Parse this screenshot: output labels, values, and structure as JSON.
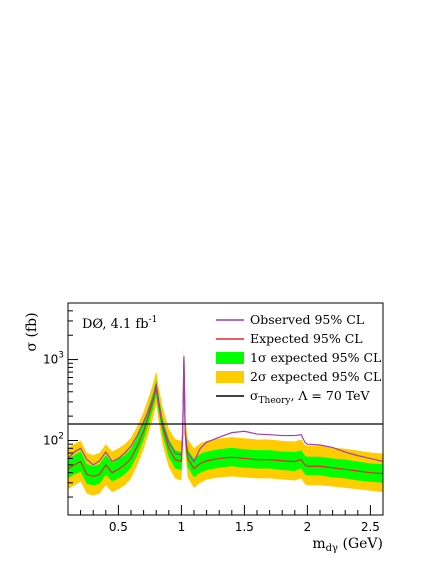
{
  "chart_data": {
    "type": "line",
    "title": "",
    "experiment_label": "DØ, 4.1 fb",
    "experiment_label_sup": "-1",
    "xlabel": "m",
    "xlabel_sub": "dγ",
    "xlabel_unit": " (GeV)",
    "ylabel": "σ (fb)",
    "xlim": [
      0.1,
      2.6
    ],
    "ylim": [
      12,
      5000
    ],
    "yscale": "log",
    "grid": false,
    "legend_position": "top-right",
    "x_ticks": [
      {
        "value": 0.5,
        "label": "0.5"
      },
      {
        "value": 1.0,
        "label": "1"
      },
      {
        "value": 1.5,
        "label": "1.5"
      },
      {
        "value": 2.0,
        "label": "2"
      },
      {
        "value": 2.5,
        "label": "2.5"
      }
    ],
    "y_ticks": [
      {
        "value": 100,
        "base": "10",
        "exp": "2"
      },
      {
        "value": 1000,
        "base": "10",
        "exp": "3"
      }
    ],
    "x": [
      0.1,
      0.15,
      0.2,
      0.25,
      0.3,
      0.35,
      0.4,
      0.45,
      0.5,
      0.55,
      0.6,
      0.65,
      0.7,
      0.75,
      0.78,
      0.8,
      0.82,
      0.85,
      0.9,
      0.95,
      1.0,
      1.01,
      1.02,
      1.03,
      1.05,
      1.1,
      1.15,
      1.2,
      1.3,
      1.4,
      1.5,
      1.6,
      1.7,
      1.8,
      1.9,
      1.95,
      1.98,
      2.0,
      2.1,
      2.2,
      2.3,
      2.4,
      2.5,
      2.6
    ],
    "series": [
      {
        "name": "Observed 95% CL",
        "color": "#9b3fb0",
        "values": [
          60,
          72,
          80,
          58,
          50,
          56,
          72,
          55,
          60,
          70,
          85,
          115,
          170,
          260,
          350,
          500,
          300,
          160,
          95,
          70,
          66,
          120,
          1100,
          130,
          70,
          55,
          80,
          95,
          110,
          125,
          130,
          120,
          118,
          115,
          115,
          118,
          95,
          90,
          88,
          82,
          72,
          65,
          60,
          55
        ]
      },
      {
        "name": "Expected 95% CL",
        "color": "#e8262a",
        "values": [
          45,
          50,
          55,
          38,
          36,
          38,
          50,
          40,
          44,
          50,
          60,
          85,
          130,
          230,
          330,
          450,
          280,
          150,
          80,
          58,
          55,
          110,
          1050,
          120,
          60,
          45,
          52,
          56,
          60,
          62,
          60,
          58,
          58,
          56,
          55,
          58,
          50,
          48,
          48,
          46,
          44,
          42,
          40,
          39
        ]
      }
    ],
    "band_1sigma": {
      "name": "1σ expected 95% CL",
      "color": "#00ff00",
      "lower": [
        34,
        38,
        41,
        29,
        28,
        29,
        38,
        31,
        34,
        38,
        46,
        66,
        102,
        182,
        262,
        360,
        222,
        118,
        62,
        45,
        43,
        86,
        840,
        94,
        47,
        35,
        40,
        43,
        46,
        48,
        46,
        45,
        45,
        43,
        42,
        45,
        38,
        37,
        37,
        35,
        34,
        32,
        31,
        30
      ],
      "upper": [
        60,
        66,
        73,
        51,
        48,
        51,
        66,
        53,
        59,
        66,
        79,
        110,
        166,
        290,
        414,
        560,
        350,
        190,
        104,
        76,
        72,
        138,
        1260,
        150,
        78,
        59,
        68,
        73,
        78,
        81,
        78,
        76,
        76,
        73,
        72,
        76,
        65,
        63,
        63,
        60,
        58,
        55,
        52,
        51
      ]
    },
    "band_2sigma": {
      "name": "2σ expected 95% CL",
      "color": "#ffcc00",
      "lower": [
        25,
        28,
        31,
        22,
        21,
        22,
        28,
        23,
        25,
        28,
        34,
        50,
        78,
        140,
        200,
        280,
        170,
        90,
        47,
        34,
        32,
        66,
        660,
        72,
        35,
        26,
        30,
        33,
        35,
        36,
        35,
        34,
        34,
        33,
        32,
        34,
        29,
        28,
        28,
        27,
        26,
        25,
        24,
        23
      ],
      "upper": [
        82,
        90,
        100,
        70,
        66,
        70,
        90,
        73,
        80,
        90,
        108,
        150,
        225,
        380,
        540,
        720,
        460,
        260,
        140,
        104,
        99,
        185,
        1420,
        200,
        105,
        80,
        92,
        99,
        106,
        110,
        106,
        103,
        103,
        99,
        97,
        103,
        88,
        86,
        86,
        82,
        79,
        75,
        71,
        69
      ]
    },
    "theory_line": {
      "name_main": "σ",
      "name_sub": "Theory",
      "name_rest": ", Λ = 70 TeV",
      "value": 160,
      "color": "#000000"
    },
    "legend": [
      {
        "label": "Observed 95% CL",
        "kind": "line",
        "color": "#9b3fb0"
      },
      {
        "label": "Expected 95% CL",
        "kind": "line",
        "color": "#e8262a"
      },
      {
        "label": "1σ expected 95% CL",
        "kind": "box",
        "color": "#00ff00"
      },
      {
        "label": "2σ expected 95% CL",
        "kind": "box",
        "color": "#ffcc00"
      }
    ]
  }
}
